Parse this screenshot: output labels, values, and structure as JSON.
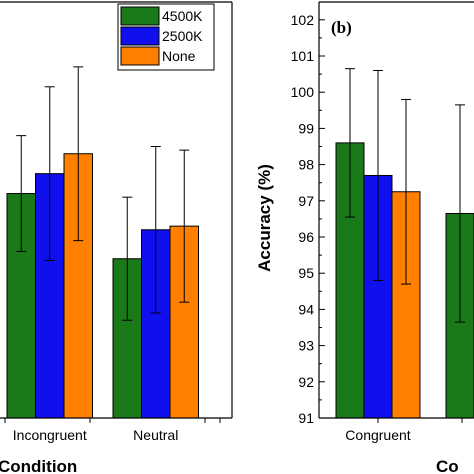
{
  "chart_data": [
    {
      "type": "bar",
      "categories": [
        "Incongruent",
        "Neutral"
      ],
      "series": [
        {
          "name": "4500K",
          "color": "#1a7a1a",
          "values": [
            97.2,
            95.4
          ],
          "error": [
            1.6,
            1.7
          ]
        },
        {
          "name": "2500K",
          "color": "#1010ee",
          "values": [
            97.75,
            96.2
          ],
          "error": [
            2.4,
            2.3
          ]
        },
        {
          "name": "None",
          "color": "#ff8000",
          "values": [
            98.3,
            96.3
          ],
          "error": [
            2.4,
            2.1
          ]
        }
      ],
      "xlabel": "Condition",
      "ylabel": "",
      "ylim": [
        91,
        102.5
      ],
      "legend": "top-right",
      "legend_entries": [
        "4500K",
        "2500K",
        "None"
      ],
      "panel_label": ""
    },
    {
      "type": "bar",
      "categories": [
        "Congruent",
        "Inco"
      ],
      "series": [
        {
          "name": "4500K",
          "color": "#1a7a1a",
          "values": [
            98.6,
            96.65
          ],
          "error": [
            2.05,
            3.0
          ]
        },
        {
          "name": "2500K",
          "color": "#1010ee",
          "values": [
            97.7,
            96.5
          ],
          "error": [
            2.9,
            2.5
          ]
        },
        {
          "name": "None",
          "color": "#ff8000",
          "values": [
            97.25,
            96.3
          ],
          "error": [
            2.55,
            2.0
          ]
        }
      ],
      "xlabel": "Co",
      "ylabel": "Accuracy (%)",
      "yticks": [
        "91",
        "92",
        "93",
        "94",
        "95",
        "96",
        "97",
        "98",
        "99",
        "100",
        "101",
        "102"
      ],
      "ylim": [
        91,
        102.5
      ],
      "panel_label": "(b)"
    }
  ]
}
